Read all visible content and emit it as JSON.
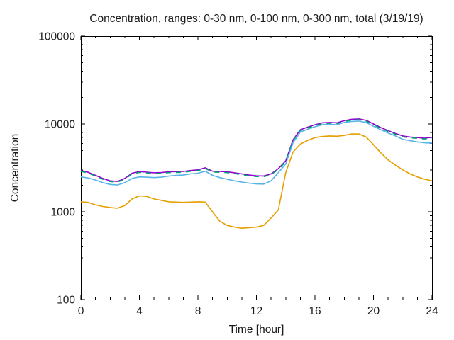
{
  "chart_data": {
    "type": "line",
    "title": "Concentration, ranges: 0-30 nm, 0-100 nm, 0-300 nm, total (3/19/19)",
    "xlabel": "Time [hour]",
    "ylabel": "Concentration",
    "x_range": [
      0,
      24
    ],
    "y_range": [
      100,
      100000
    ],
    "y_scale": "log10",
    "grid": false,
    "legend": "none",
    "x_major_ticks": [
      0,
      4,
      8,
      12,
      16,
      20,
      24
    ],
    "x_major_tick_labels": [
      "0",
      "4",
      "8",
      "12",
      "16",
      "20",
      "24"
    ],
    "x_minor_tick_interval": 1,
    "y_major_ticks": [
      100,
      1000,
      10000,
      100000
    ],
    "y_major_tick_labels": [
      "100",
      "1000",
      "10000",
      "100000"
    ],
    "y_minor_tick_multiples": [
      2,
      3,
      4,
      5,
      6,
      7,
      8,
      9
    ],
    "x": [
      0,
      0.5,
      1,
      1.5,
      2,
      2.5,
      3,
      3.5,
      4,
      4.5,
      5,
      5.5,
      6,
      6.5,
      7,
      7.5,
      8,
      8.5,
      9,
      9.5,
      10,
      10.5,
      11,
      11.5,
      12,
      12.5,
      13,
      13.5,
      14,
      14.5,
      15,
      15.5,
      16,
      16.5,
      17,
      17.5,
      18,
      18.5,
      19,
      19.5,
      20,
      20.5,
      21,
      21.5,
      22,
      22.5,
      23,
      23.5,
      24
    ],
    "series": [
      {
        "name": "total",
        "color": "#9400d3",
        "style": "solid",
        "values": [
          2950,
          2820,
          2600,
          2400,
          2250,
          2220,
          2400,
          2750,
          2870,
          2830,
          2780,
          2800,
          2850,
          2870,
          2880,
          2950,
          3000,
          3170,
          2900,
          2880,
          2850,
          2780,
          2700,
          2620,
          2570,
          2560,
          2700,
          3100,
          3800,
          6600,
          8600,
          9200,
          9800,
          10300,
          10400,
          10300,
          10900,
          11300,
          11400,
          11000,
          10000,
          9100,
          8400,
          7800,
          7300,
          7100,
          7000,
          6900,
          7050
        ]
      },
      {
        "name": "0-300 nm",
        "color": "#009e73",
        "style": "dashed",
        "values": [
          2890,
          2760,
          2550,
          2350,
          2210,
          2180,
          2350,
          2700,
          2810,
          2770,
          2720,
          2740,
          2790,
          2810,
          2820,
          2890,
          2940,
          3110,
          2840,
          2820,
          2790,
          2720,
          2650,
          2570,
          2520,
          2510,
          2650,
          3040,
          3720,
          6470,
          8430,
          9020,
          9600,
          10090,
          10190,
          10090,
          10680,
          11070,
          11170,
          10780,
          9800,
          8920,
          8230,
          7640,
          7150,
          6960,
          6860,
          6760,
          6910
        ]
      },
      {
        "name": "0-100 nm",
        "color": "#56b4e9",
        "style": "solid",
        "values": [
          2500,
          2430,
          2300,
          2150,
          2050,
          2020,
          2150,
          2400,
          2500,
          2480,
          2450,
          2480,
          2550,
          2600,
          2620,
          2700,
          2750,
          2900,
          2600,
          2450,
          2350,
          2250,
          2180,
          2120,
          2080,
          2070,
          2250,
          2800,
          3500,
          6100,
          8100,
          8700,
          9300,
          9800,
          9900,
          9800,
          10400,
          10700,
          10800,
          10400,
          9400,
          8600,
          7900,
          7300,
          6700,
          6450,
          6250,
          6100,
          6050
        ]
      },
      {
        "name": "0-30 nm",
        "color": "#e69f00",
        "style": "solid",
        "values": [
          1300,
          1280,
          1200,
          1150,
          1120,
          1100,
          1180,
          1400,
          1520,
          1500,
          1400,
          1350,
          1300,
          1290,
          1280,
          1290,
          1300,
          1290,
          1000,
          780,
          700,
          670,
          650,
          660,
          670,
          700,
          850,
          1050,
          2800,
          4800,
          5900,
          6500,
          7000,
          7200,
          7300,
          7250,
          7400,
          7700,
          7700,
          7100,
          5800,
          4700,
          3900,
          3400,
          3000,
          2700,
          2500,
          2350,
          2250
        ]
      }
    ]
  },
  "colors": {
    "background": "#ffffff",
    "axis": "#000000",
    "text": "#1a1a1a"
  }
}
